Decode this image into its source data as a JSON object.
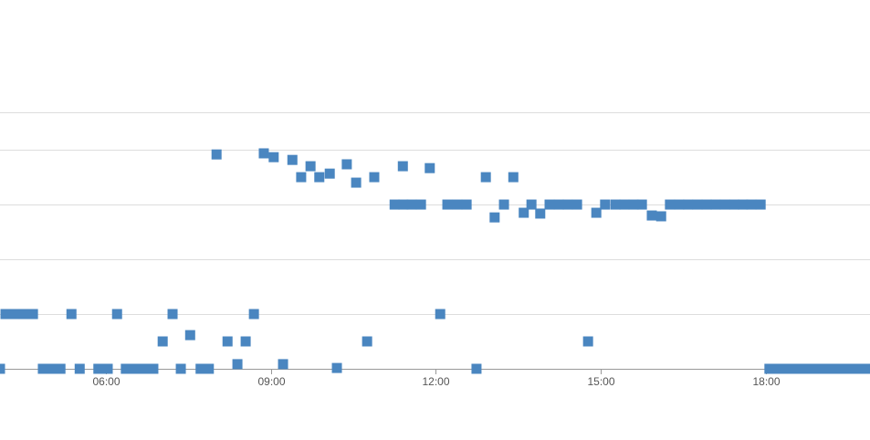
{
  "chart_data": {
    "type": "scatter",
    "xlim": [
      4.07,
      19.9
    ],
    "xticks": [
      {
        "value": 6,
        "label": "06:00"
      },
      {
        "value": 9,
        "label": "09:00"
      },
      {
        "value": 12,
        "label": "12:00"
      },
      {
        "value": 15,
        "label": "15:00"
      },
      {
        "value": 18,
        "label": "18:00"
      }
    ],
    "ylim": [
      0,
      9.37
    ],
    "yticks": [
      0,
      2,
      4,
      6,
      8,
      9.37
    ],
    "grid": true,
    "series": [
      {
        "color": "#4a86c0",
        "x": [
          4.07,
          4.17,
          4.34,
          4.5,
          4.67,
          4.85,
          5.02,
          5.17,
          5.37,
          5.52,
          5.86,
          6.03,
          6.2,
          6.36,
          6.53,
          6.69,
          6.86,
          7.03,
          7.21,
          7.36,
          7.53,
          7.72,
          7.87,
          8.01,
          8.21,
          8.39,
          8.54,
          8.69,
          8.87,
          9.05,
          9.22,
          9.39,
          9.55,
          9.72,
          9.88,
          10.07,
          10.2,
          10.38,
          10.55,
          10.75,
          10.88,
          11.25,
          11.4,
          11.41,
          11.56,
          11.73,
          11.89,
          12.08,
          12.21,
          12.39,
          12.56,
          12.74,
          12.91,
          13.07,
          13.24,
          13.41,
          13.6,
          13.74,
          13.9,
          14.07,
          14.24,
          14.4,
          14.57,
          14.77,
          14.92,
          15.08,
          15.27,
          15.43,
          15.6,
          15.75,
          15.93,
          16.1,
          16.26,
          16.43,
          16.59,
          16.76,
          16.93,
          17.09,
          17.26,
          17.43,
          17.59,
          17.74,
          17.91,
          18.07,
          18.24,
          18.39,
          18.57,
          18.74,
          18.9,
          19.06,
          19.23,
          19.4,
          19.57,
          19.73,
          19.88
        ],
        "values": [
          0,
          2,
          2,
          2,
          2,
          0,
          0,
          0,
          2,
          0,
          0,
          0,
          2,
          0,
          0,
          0,
          0,
          1,
          2,
          0,
          1.23,
          0,
          0,
          7.83,
          1,
          0.17,
          1,
          2,
          7.87,
          7.73,
          0.17,
          7.63,
          7,
          7.4,
          7,
          7.13,
          0.03,
          7.47,
          6.8,
          1,
          7,
          6,
          7.4,
          6,
          6,
          6,
          7.33,
          2,
          6,
          6,
          6,
          0,
          7,
          5.53,
          6,
          7,
          5.7,
          6,
          5.67,
          6,
          6,
          6,
          6,
          1,
          5.7,
          6,
          6,
          6,
          6,
          6,
          5.6,
          5.57,
          6,
          6,
          6,
          6,
          6,
          6,
          6,
          6,
          6,
          6,
          6,
          0,
          0,
          0,
          0,
          0,
          0,
          0,
          0,
          0,
          0,
          0,
          0
        ]
      }
    ]
  }
}
